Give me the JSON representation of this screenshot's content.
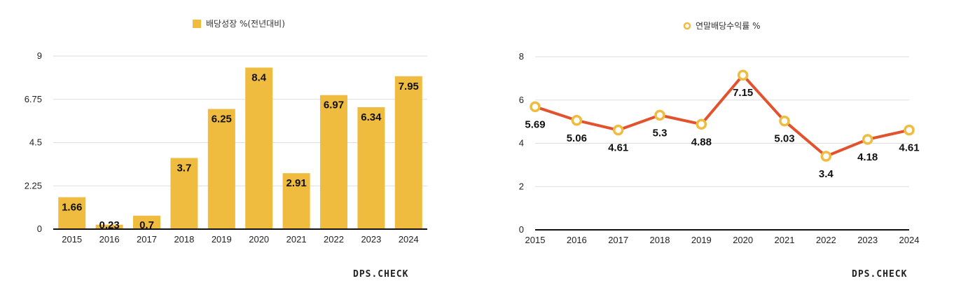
{
  "brand": "DPS.CHECK",
  "colors": {
    "bar": "#EFBC3F",
    "line": "#E2522E",
    "marker": "#EFBC3F",
    "grid": "#DDDDDD",
    "axis": "#111111"
  },
  "chart_data": [
    {
      "type": "bar",
      "title": "",
      "xlabel": "",
      "ylabel": "",
      "categories": [
        "2015",
        "2016",
        "2017",
        "2018",
        "2019",
        "2020",
        "2021",
        "2022",
        "2023",
        "2024"
      ],
      "series": [
        {
          "name": "배당성장 %(전년대비)",
          "values": [
            1.66,
            0.23,
            0.7,
            3.7,
            6.25,
            8.4,
            2.91,
            6.97,
            6.34,
            7.95
          ]
        }
      ],
      "data_labels": [
        "1.66",
        "0.23",
        "0.7",
        "3.7",
        "6.25",
        "8.4",
        "2.91",
        "6.97",
        "6.34",
        "7.95"
      ],
      "yticks": [
        "0",
        "2.25",
        "4.5",
        "6.75",
        "9"
      ],
      "ylim": [
        0,
        9
      ],
      "grid": true,
      "legend": "top-center"
    },
    {
      "type": "line",
      "title": "",
      "xlabel": "",
      "ylabel": "",
      "categories": [
        "2015",
        "2016",
        "2017",
        "2018",
        "2019",
        "2020",
        "2021",
        "2022",
        "2023",
        "2024"
      ],
      "series": [
        {
          "name": "연말배당수익률 %",
          "values": [
            5.69,
            5.06,
            4.61,
            5.3,
            4.88,
            7.15,
            5.03,
            3.4,
            4.18,
            4.61
          ]
        }
      ],
      "data_labels": [
        "5.69",
        "5.06",
        "4.61",
        "5.3",
        "4.88",
        "7.15",
        "5.03",
        "3.4",
        "4.18",
        "4.61"
      ],
      "yticks": [
        "0",
        "2",
        "4",
        "6",
        "8"
      ],
      "ylim": [
        0,
        8
      ],
      "grid": true,
      "legend": "top-center"
    }
  ]
}
